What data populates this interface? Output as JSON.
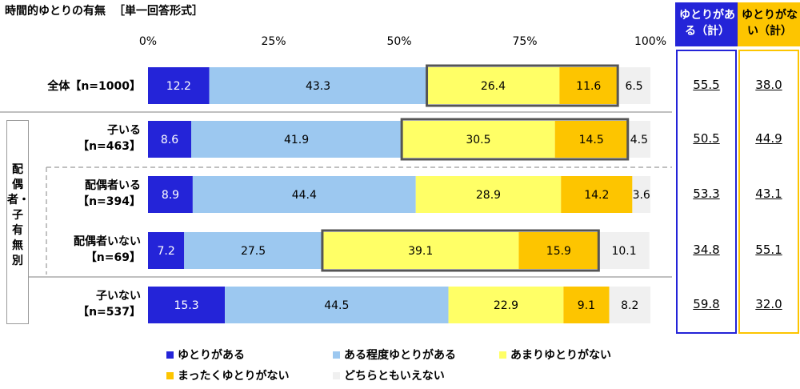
{
  "title": "時間的ゆとりの有無",
  "question_type": "［単一回答形式］",
  "side_label": "配偶者・子有無別",
  "summary_headers": {
    "yes": "ゆとりがある（計）",
    "no": "ゆとりがない（計）"
  },
  "colors": {
    "yutori_aru": "#2424d8",
    "aru_teido": "#9cc8f0",
    "amari_nai": "#ffff66",
    "mattaku_nai": "#fdc500",
    "dochira_demo": "#f0f0f0",
    "frame": "#555555"
  },
  "chart_data": {
    "type": "bar",
    "orientation": "horizontal",
    "stacked": true,
    "xlim": [
      0,
      100
    ],
    "x_ticks": [
      "0%",
      "25%",
      "50%",
      "75%",
      "100%"
    ],
    "grid": false,
    "legend_position": "bottom",
    "categories": [
      "全体【n=1000】",
      "子いる\n【n=463】",
      "配偶者いる\n【n=394】",
      "配偶者いない\n【n=69】",
      "子いない\n【n=537】"
    ],
    "series": [
      {
        "name": "ゆとりがある",
        "values": [
          12.2,
          8.6,
          8.9,
          7.2,
          15.3
        ]
      },
      {
        "name": "ある程度ゆとりがある",
        "values": [
          43.3,
          41.9,
          44.4,
          27.5,
          44.5
        ]
      },
      {
        "name": "あまりゆとりがない",
        "values": [
          26.4,
          30.5,
          28.9,
          39.1,
          22.9
        ]
      },
      {
        "name": "まったくゆとりがない",
        "values": [
          11.6,
          14.5,
          14.2,
          15.9,
          9.1
        ]
      },
      {
        "name": "どちらともいえない",
        "values": [
          6.5,
          4.5,
          3.6,
          10.1,
          8.2
        ]
      }
    ],
    "summary": {
      "yes": [
        "55.5",
        "50.5",
        "53.3",
        "34.8",
        "59.8"
      ],
      "no": [
        "38.0",
        "44.9",
        "43.1",
        "55.1",
        "32.0"
      ]
    },
    "highlighted_negative": [
      true,
      true,
      false,
      true,
      false
    ]
  }
}
